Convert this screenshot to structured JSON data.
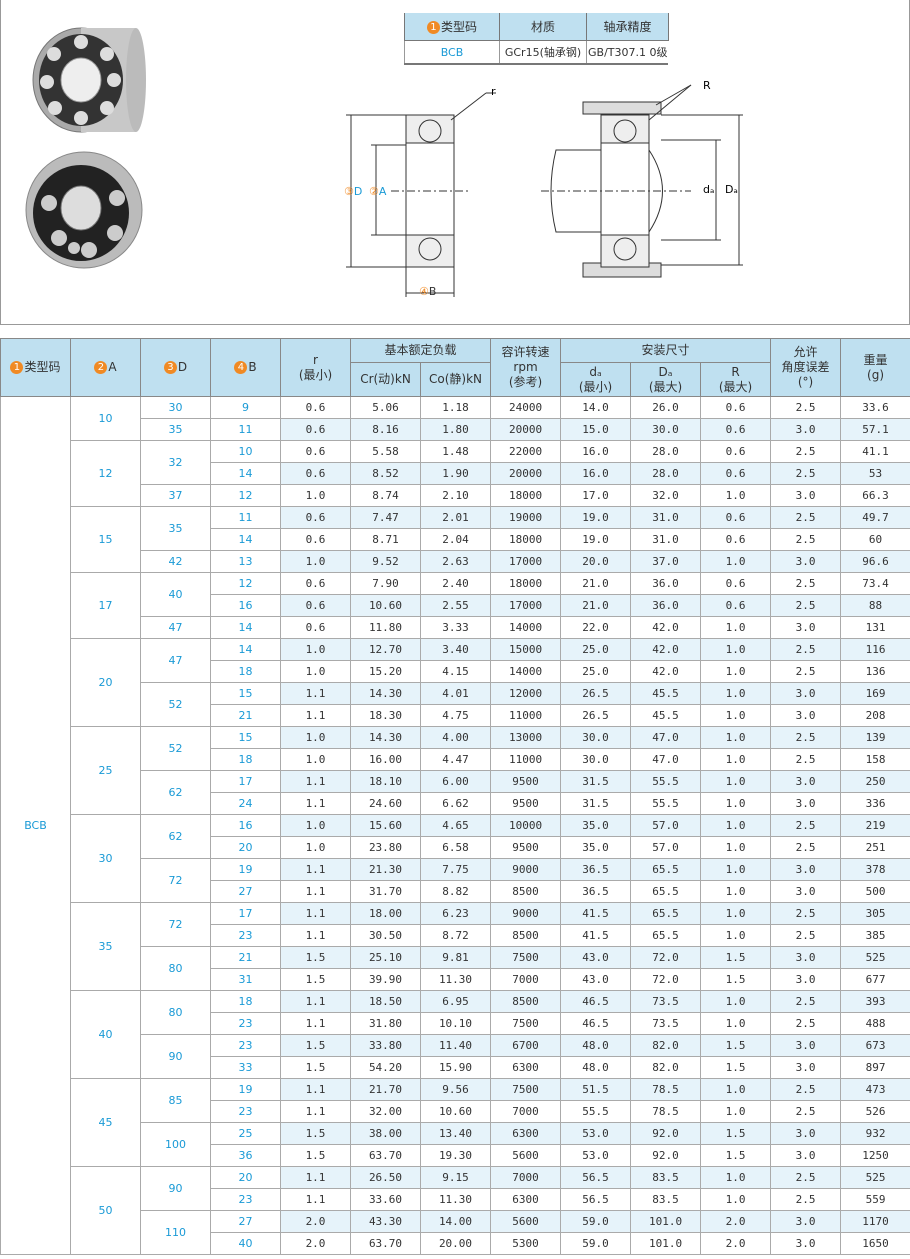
{
  "spec_table": {
    "headers": [
      "类型码",
      "材质",
      "轴承精度"
    ],
    "values": [
      "BCB",
      "GCr15(轴承钢)",
      "GB/T307.1 0级"
    ]
  },
  "diagram": {
    "labels": {
      "r": "r",
      "R": "R",
      "D": "D",
      "A": "A",
      "B": "B",
      "da": "dₐ",
      "Da": "Dₐ"
    },
    "nums": [
      "1",
      "2",
      "3",
      "4"
    ]
  },
  "main": {
    "headers": {
      "type": "类型码",
      "A": "A",
      "D": "D",
      "B": "B",
      "r": "r",
      "r_sub": "(最小)",
      "load": "基本额定负载",
      "cr": "Cr(动)kN",
      "co": "Co(静)kN",
      "speed": "容许转速",
      "speed_unit": "rpm",
      "speed_sub": "(参考)",
      "install": "安装尺寸",
      "da": "dₐ",
      "da_sub": "(最小)",
      "Da": "Dₐ",
      "Da_sub": "(最大)",
      "R": "R",
      "R_sub": "(最大)",
      "angle": "允许",
      "angle2": "角度误差",
      "angle_unit": "(°)",
      "weight": "重量",
      "weight_unit": "(g)"
    },
    "type_code": "BCB",
    "groups": [
      {
        "A": "10",
        "Ds": [
          {
            "D": "30",
            "rows": [
              [
                "9",
                "0.6",
                "5.06",
                "1.18",
                "24000",
                "14.0",
                "26.0",
                "0.6",
                "2.5",
                "33.6"
              ]
            ]
          },
          {
            "D": "35",
            "rows": [
              [
                "11",
                "0.6",
                "8.16",
                "1.80",
                "20000",
                "15.0",
                "30.0",
                "0.6",
                "3.0",
                "57.1"
              ]
            ]
          }
        ]
      },
      {
        "A": "12",
        "Ds": [
          {
            "D": "32",
            "rows": [
              [
                "10",
                "0.6",
                "5.58",
                "1.48",
                "22000",
                "16.0",
                "28.0",
                "0.6",
                "2.5",
                "41.1"
              ],
              [
                "14",
                "0.6",
                "8.52",
                "1.90",
                "20000",
                "16.0",
                "28.0",
                "0.6",
                "2.5",
                "53"
              ]
            ]
          },
          {
            "D": "37",
            "rows": [
              [
                "12",
                "1.0",
                "8.74",
                "2.10",
                "18000",
                "17.0",
                "32.0",
                "1.0",
                "3.0",
                "66.3"
              ]
            ]
          }
        ]
      },
      {
        "A": "15",
        "Ds": [
          {
            "D": "35",
            "rows": [
              [
                "11",
                "0.6",
                "7.47",
                "2.01",
                "19000",
                "19.0",
                "31.0",
                "0.6",
                "2.5",
                "49.7"
              ],
              [
                "14",
                "0.6",
                "8.71",
                "2.04",
                "18000",
                "19.0",
                "31.0",
                "0.6",
                "2.5",
                "60"
              ]
            ]
          },
          {
            "D": "42",
            "rows": [
              [
                "13",
                "1.0",
                "9.52",
                "2.63",
                "17000",
                "20.0",
                "37.0",
                "1.0",
                "3.0",
                "96.6"
              ]
            ]
          }
        ]
      },
      {
        "A": "17",
        "Ds": [
          {
            "D": "40",
            "rows": [
              [
                "12",
                "0.6",
                "7.90",
                "2.40",
                "18000",
                "21.0",
                "36.0",
                "0.6",
                "2.5",
                "73.4"
              ],
              [
                "16",
                "0.6",
                "10.60",
                "2.55",
                "17000",
                "21.0",
                "36.0",
                "0.6",
                "2.5",
                "88"
              ]
            ]
          },
          {
            "D": "47",
            "rows": [
              [
                "14",
                "0.6",
                "11.80",
                "3.33",
                "14000",
                "22.0",
                "42.0",
                "1.0",
                "3.0",
                "131"
              ]
            ]
          }
        ]
      },
      {
        "A": "20",
        "Ds": [
          {
            "D": "47",
            "rows": [
              [
                "14",
                "1.0",
                "12.70",
                "3.40",
                "15000",
                "25.0",
                "42.0",
                "1.0",
                "2.5",
                "116"
              ],
              [
                "18",
                "1.0",
                "15.20",
                "4.15",
                "14000",
                "25.0",
                "42.0",
                "1.0",
                "2.5",
                "136"
              ]
            ]
          },
          {
            "D": "52",
            "rows": [
              [
                "15",
                "1.1",
                "14.30",
                "4.01",
                "12000",
                "26.5",
                "45.5",
                "1.0",
                "3.0",
                "169"
              ],
              [
                "21",
                "1.1",
                "18.30",
                "4.75",
                "11000",
                "26.5",
                "45.5",
                "1.0",
                "3.0",
                "208"
              ]
            ]
          }
        ]
      },
      {
        "A": "25",
        "Ds": [
          {
            "D": "52",
            "rows": [
              [
                "15",
                "1.0",
                "14.30",
                "4.00",
                "13000",
                "30.0",
                "47.0",
                "1.0",
                "2.5",
                "139"
              ],
              [
                "18",
                "1.0",
                "16.00",
                "4.47",
                "11000",
                "30.0",
                "47.0",
                "1.0",
                "2.5",
                "158"
              ]
            ]
          },
          {
            "D": "62",
            "rows": [
              [
                "17",
                "1.1",
                "18.10",
                "6.00",
                "9500",
                "31.5",
                "55.5",
                "1.0",
                "3.0",
                "250"
              ],
              [
                "24",
                "1.1",
                "24.60",
                "6.62",
                "9500",
                "31.5",
                "55.5",
                "1.0",
                "3.0",
                "336"
              ]
            ]
          }
        ]
      },
      {
        "A": "30",
        "Ds": [
          {
            "D": "62",
            "rows": [
              [
                "16",
                "1.0",
                "15.60",
                "4.65",
                "10000",
                "35.0",
                "57.0",
                "1.0",
                "2.5",
                "219"
              ],
              [
                "20",
                "1.0",
                "23.80",
                "6.58",
                "9500",
                "35.0",
                "57.0",
                "1.0",
                "2.5",
                "251"
              ]
            ]
          },
          {
            "D": "72",
            "rows": [
              [
                "19",
                "1.1",
                "21.30",
                "7.75",
                "9000",
                "36.5",
                "65.5",
                "1.0",
                "3.0",
                "378"
              ],
              [
                "27",
                "1.1",
                "31.70",
                "8.82",
                "8500",
                "36.5",
                "65.5",
                "1.0",
                "3.0",
                "500"
              ]
            ]
          }
        ]
      },
      {
        "A": "35",
        "Ds": [
          {
            "D": "72",
            "rows": [
              [
                "17",
                "1.1",
                "18.00",
                "6.23",
                "9000",
                "41.5",
                "65.5",
                "1.0",
                "2.5",
                "305"
              ],
              [
                "23",
                "1.1",
                "30.50",
                "8.72",
                "8500",
                "41.5",
                "65.5",
                "1.0",
                "2.5",
                "385"
              ]
            ]
          },
          {
            "D": "80",
            "rows": [
              [
                "21",
                "1.5",
                "25.10",
                "9.81",
                "7500",
                "43.0",
                "72.0",
                "1.5",
                "3.0",
                "525"
              ],
              [
                "31",
                "1.5",
                "39.90",
                "11.30",
                "7000",
                "43.0",
                "72.0",
                "1.5",
                "3.0",
                "677"
              ]
            ]
          }
        ]
      },
      {
        "A": "40",
        "Ds": [
          {
            "D": "80",
            "rows": [
              [
                "18",
                "1.1",
                "18.50",
                "6.95",
                "8500",
                "46.5",
                "73.5",
                "1.0",
                "2.5",
                "393"
              ],
              [
                "23",
                "1.1",
                "31.80",
                "10.10",
                "7500",
                "46.5",
                "73.5",
                "1.0",
                "2.5",
                "488"
              ]
            ]
          },
          {
            "D": "90",
            "rows": [
              [
                "23",
                "1.5",
                "33.80",
                "11.40",
                "6700",
                "48.0",
                "82.0",
                "1.5",
                "3.0",
                "673"
              ],
              [
                "33",
                "1.5",
                "54.20",
                "15.90",
                "6300",
                "48.0",
                "82.0",
                "1.5",
                "3.0",
                "897"
              ]
            ]
          }
        ]
      },
      {
        "A": "45",
        "Ds": [
          {
            "D": "85",
            "rows": [
              [
                "19",
                "1.1",
                "21.70",
                "9.56",
                "7500",
                "51.5",
                "78.5",
                "1.0",
                "2.5",
                "473"
              ],
              [
                "23",
                "1.1",
                "32.00",
                "10.60",
                "7000",
                "55.5",
                "78.5",
                "1.0",
                "2.5",
                "526"
              ]
            ]
          },
          {
            "D": "100",
            "rows": [
              [
                "25",
                "1.5",
                "38.00",
                "13.40",
                "6300",
                "53.0",
                "92.0",
                "1.5",
                "3.0",
                "932"
              ],
              [
                "36",
                "1.5",
                "63.70",
                "19.30",
                "5600",
                "53.0",
                "92.0",
                "1.5",
                "3.0",
                "1250"
              ]
            ]
          }
        ]
      },
      {
        "A": "50",
        "Ds": [
          {
            "D": "90",
            "rows": [
              [
                "20",
                "1.1",
                "26.50",
                "9.15",
                "7000",
                "56.5",
                "83.5",
                "1.0",
                "2.5",
                "525"
              ],
              [
                "23",
                "1.1",
                "33.60",
                "11.30",
                "6300",
                "56.5",
                "83.5",
                "1.0",
                "2.5",
                "559"
              ]
            ]
          },
          {
            "D": "110",
            "rows": [
              [
                "27",
                "2.0",
                "43.30",
                "14.00",
                "5600",
                "59.0",
                "101.0",
                "2.0",
                "3.0",
                "1170"
              ],
              [
                "40",
                "2.0",
                "63.70",
                "20.00",
                "5300",
                "59.0",
                "101.0",
                "2.0",
                "3.0",
                "1650"
              ]
            ]
          }
        ]
      }
    ]
  },
  "colors": {
    "header_bg": "#bfe0f0",
    "accent_blue": "#1a9ad6",
    "badge_orange": "#f08a24",
    "row_alt": "#e6f3fa"
  }
}
